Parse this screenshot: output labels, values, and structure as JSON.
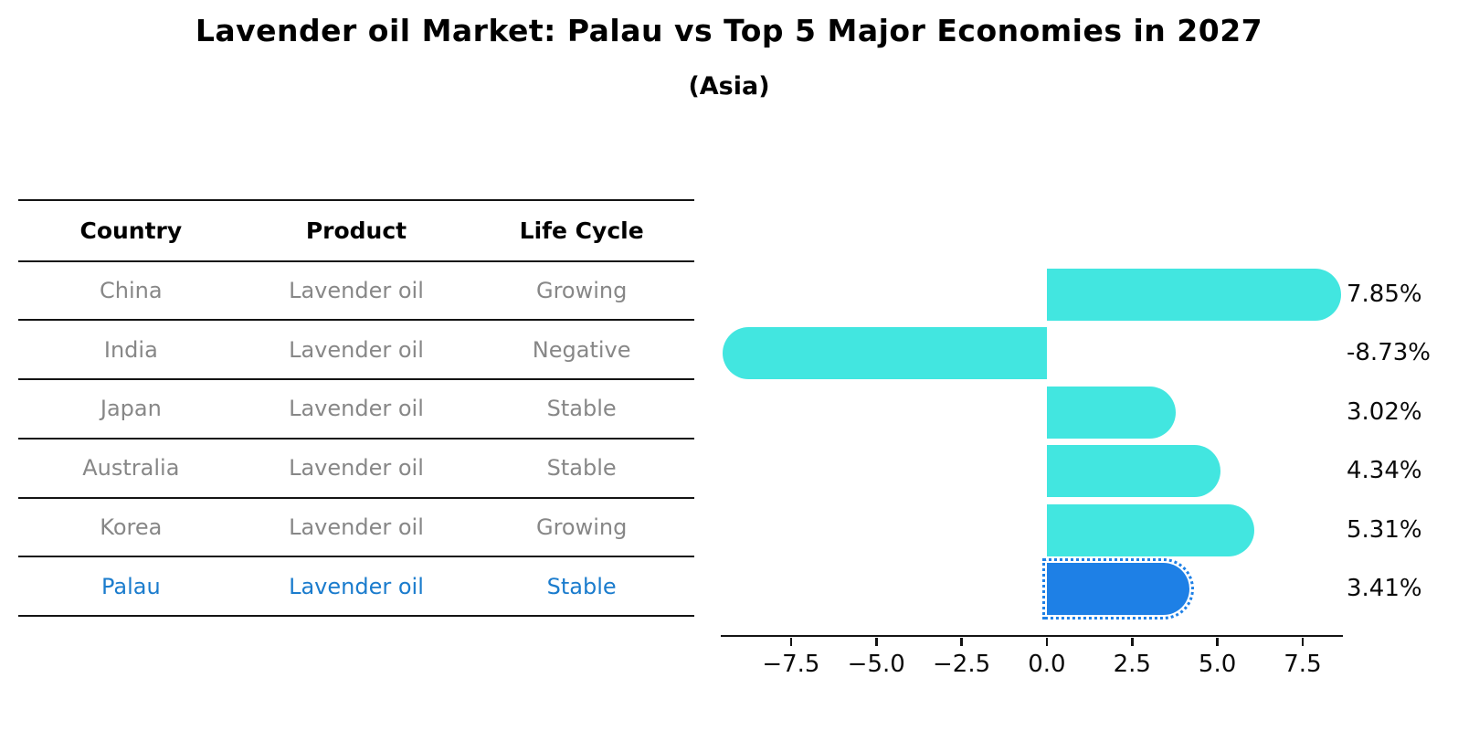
{
  "title": "Lavender oil Market: Palau vs Top 5 Major Economies in 2027",
  "subtitle": "(Asia)",
  "table": {
    "headers": [
      "Country",
      "Product",
      "Life Cycle"
    ],
    "rows": [
      {
        "country": "China",
        "product": "Lavender oil",
        "life_cycle": "Growing"
      },
      {
        "country": "India",
        "product": "Lavender oil",
        "life_cycle": "Negative"
      },
      {
        "country": "Japan",
        "product": "Lavender oil",
        "life_cycle": "Stable"
      },
      {
        "country": "Australia",
        "product": "Lavender oil",
        "life_cycle": "Stable"
      },
      {
        "country": "Korea",
        "product": "Lavender oil",
        "life_cycle": "Growing"
      },
      {
        "country": "Palau",
        "product": "Lavender oil",
        "life_cycle": "Stable"
      }
    ],
    "highlight_row": "Palau"
  },
  "chart_data": {
    "type": "bar",
    "orientation": "horizontal",
    "title": "Lavender oil Market: Palau vs Top 5 Major Economies in 2027",
    "subtitle": "(Asia)",
    "categories": [
      "China",
      "India",
      "Japan",
      "Australia",
      "Korea",
      "Palau"
    ],
    "values": [
      7.85,
      -8.73,
      3.02,
      4.34,
      5.31,
      3.41
    ],
    "value_labels": [
      "7.85%",
      "-8.73%",
      "3.02%",
      "4.34%",
      "5.31%",
      "3.41%"
    ],
    "unit": "%",
    "xlim": [
      -9.56,
      8.68
    ],
    "x_ticks": [
      -7.5,
      -5.0,
      -2.5,
      0.0,
      2.5,
      5.0,
      7.5
    ],
    "x_tick_labels": [
      "−7.5",
      "−5.0",
      "−2.5",
      "0.0",
      "2.5",
      "5.0",
      "7.5"
    ],
    "grid": false,
    "legend": false,
    "highlight_index": 5
  },
  "colors": {
    "bar": "#42e6e0",
    "highlight_bar": "#1e80e6",
    "highlight_text": "#1b7ccd",
    "row_text": "#878787",
    "line": "#141414"
  }
}
